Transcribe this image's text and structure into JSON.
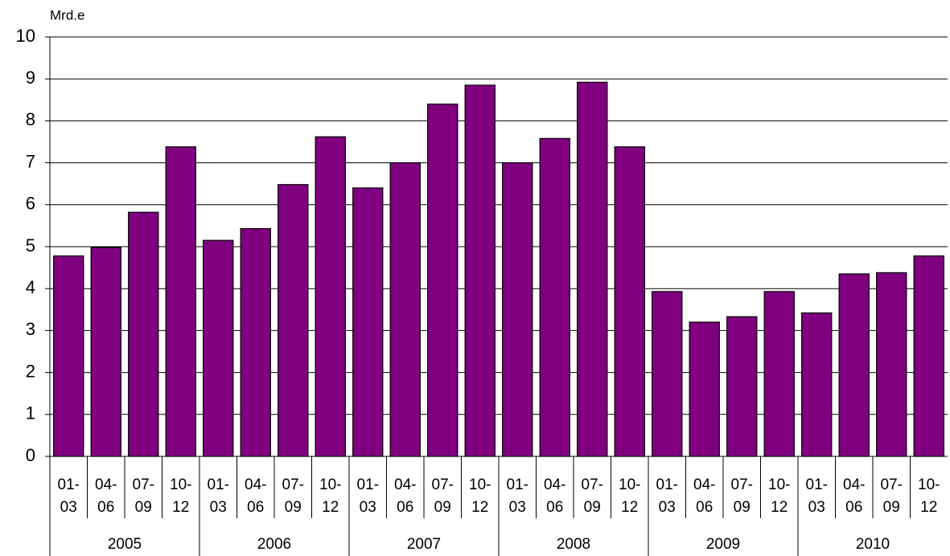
{
  "chart_data": {
    "type": "bar",
    "y_label": "Mrd.e",
    "categories": [
      "01-03",
      "04-06",
      "07-09",
      "10-12",
      "01-03",
      "04-06",
      "07-09",
      "10-12",
      "01-03",
      "04-06",
      "07-09",
      "10-12",
      "01-03",
      "04-06",
      "07-09",
      "10-12",
      "01-03",
      "04-06",
      "07-09",
      "10-12",
      "01-03",
      "04-06",
      "07-09",
      "10-12"
    ],
    "groups": [
      "2005",
      "2006",
      "2007",
      "2008",
      "2009",
      "2010"
    ],
    "values": [
      4.78,
      4.98,
      5.82,
      7.38,
      5.15,
      5.43,
      6.48,
      7.62,
      6.4,
      7.0,
      8.4,
      8.85,
      7.0,
      7.58,
      8.92,
      7.38,
      3.93,
      3.2,
      3.33,
      3.93,
      3.42,
      4.35,
      4.38,
      4.78
    ],
    "color": "#800080",
    "ylim": [
      0,
      10
    ],
    "yticks": [
      0,
      1,
      2,
      3,
      4,
      5,
      6,
      7,
      8,
      9,
      10
    ],
    "grid": true
  }
}
